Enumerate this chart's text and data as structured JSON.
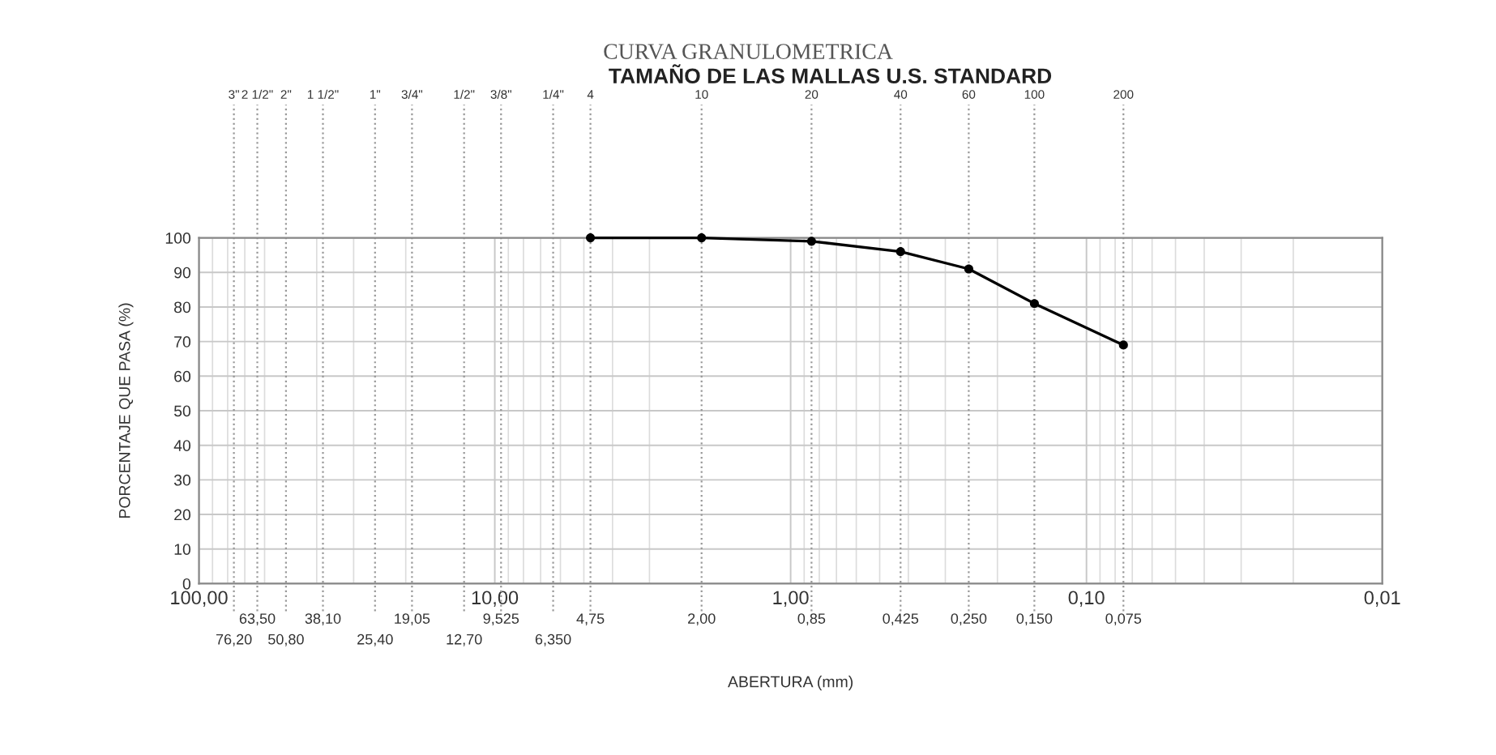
{
  "chart_data": {
    "type": "line",
    "title": "CURVA GRANULOMETRICA",
    "subtitle": "TAMAÑO DE LAS MALLAS U.S. STANDARD",
    "xlabel": "ABERTURA (mm)",
    "ylabel": "PORCENTAJE QUE PASA (%)",
    "x": [
      4.75,
      2.0,
      0.85,
      0.425,
      0.25,
      0.15,
      0.075
    ],
    "values": [
      100,
      100,
      99,
      96,
      91,
      81,
      69
    ],
    "color": "#000000",
    "marker": "circle",
    "line_style": "solid",
    "log": "x",
    "xlim": [
      100,
      0.01
    ],
    "ylim": [
      0,
      100
    ],
    "yticks": [
      0,
      10,
      20,
      30,
      40,
      50,
      60,
      70,
      80,
      90,
      100
    ],
    "xticks": [
      {
        "value": 100,
        "label": "100,00"
      },
      {
        "value": 10,
        "label": "10,00"
      },
      {
        "value": 1,
        "label": "1,00"
      },
      {
        "value": 0.1,
        "label": "0,10"
      },
      {
        "value": 0.01,
        "label": "0,01"
      }
    ],
    "ref_lines": [
      {
        "axis": "x",
        "value": 76.2,
        "label": "76,20",
        "line_style": "dotted"
      },
      {
        "axis": "x",
        "value": 63.5,
        "label": "63,50",
        "line_style": "dotted"
      },
      {
        "axis": "x",
        "value": 50.8,
        "label": "50,80",
        "line_style": "dotted"
      },
      {
        "axis": "x",
        "value": 38.1,
        "label": "38,10",
        "line_style": "dotted"
      },
      {
        "axis": "x",
        "value": 25.4,
        "label": "25,40",
        "line_style": "dotted"
      },
      {
        "axis": "x",
        "value": 19.05,
        "label": "19,05",
        "line_style": "dotted"
      },
      {
        "axis": "x",
        "value": 12.7,
        "label": "12,70",
        "line_style": "dotted"
      },
      {
        "axis": "x",
        "value": 9.525,
        "label": "9,525",
        "line_style": "dotted"
      },
      {
        "axis": "x",
        "value": 6.35,
        "label": "6,350",
        "line_style": "dotted"
      },
      {
        "axis": "x",
        "value": 4.75,
        "label": "4,75",
        "line_style": "dotted"
      },
      {
        "axis": "x",
        "value": 2.0,
        "label": "2,00",
        "line_style": "dotted"
      },
      {
        "axis": "x",
        "value": 0.85,
        "label": "0,85",
        "line_style": "dotted"
      },
      {
        "axis": "x",
        "value": 0.425,
        "label": "0,425",
        "line_style": "dotted"
      },
      {
        "axis": "x",
        "value": 0.25,
        "label": "0,250",
        "line_style": "dotted"
      },
      {
        "axis": "x",
        "value": 0.15,
        "label": "0,150",
        "line_style": "dotted"
      },
      {
        "axis": "x",
        "value": 0.075,
        "label": "0,075",
        "line_style": "dotted"
      }
    ],
    "annotations": [
      "3\"",
      "2 1/2\"",
      "2\"",
      "1 1/2\"",
      "1\"",
      "3/4\"",
      "1/2\"",
      "3/8\"",
      "1/4\"",
      "4",
      "10",
      "20",
      "40",
      "60",
      "100",
      "200"
    ],
    "grid": true,
    "legend": false
  }
}
